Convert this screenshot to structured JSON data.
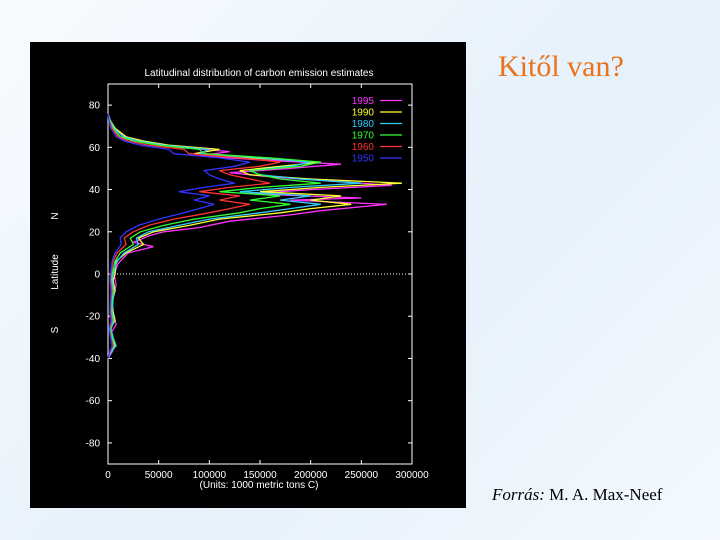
{
  "slide": {
    "title": "Kitől van?",
    "source_label": "Forrás:",
    "source_author": " M. A. Max-Neef",
    "title_color": "#e8731c"
  },
  "chart_data": {
    "type": "line",
    "title": "Latitudinal distribution of carbon emission estimates",
    "xlabel": "(Units: 1000 metric tons C)",
    "ylabel": "Latitude",
    "ylabel_north": "N",
    "ylabel_south": "S",
    "xlim": [
      0,
      300000
    ],
    "ylim": [
      -90,
      90
    ],
    "x_ticks": [
      0,
      50000,
      100000,
      150000,
      200000,
      250000,
      300000
    ],
    "x_tick_labels": [
      "0",
      "50000",
      "100000",
      "150000",
      "200000",
      "250000",
      "300000"
    ],
    "y_ticks": [
      80,
      60,
      40,
      20,
      0,
      -20,
      -40,
      -60,
      -80
    ],
    "y_tick_labels": [
      "80",
      "60",
      "40",
      "20",
      "0",
      "-20",
      "-40",
      "-60",
      "-80"
    ],
    "background": "#000000",
    "legend_position": "top-right",
    "equator_line": true,
    "series": [
      {
        "name": "1995",
        "color": "#ff33ff",
        "points": [
          [
            0,
            -40
          ],
          [
            4000,
            -37
          ],
          [
            6000,
            -35
          ],
          [
            5000,
            -32
          ],
          [
            3000,
            -28
          ],
          [
            8000,
            -24
          ],
          [
            6000,
            -20
          ],
          [
            3000,
            -15
          ],
          [
            6000,
            -10
          ],
          [
            8000,
            -5
          ],
          [
            6000,
            0
          ],
          [
            10000,
            5
          ],
          [
            20000,
            10
          ],
          [
            45000,
            13
          ],
          [
            25000,
            15
          ],
          [
            40000,
            18
          ],
          [
            55000,
            20
          ],
          [
            90000,
            22
          ],
          [
            120000,
            25
          ],
          [
            180000,
            28
          ],
          [
            210000,
            30
          ],
          [
            275000,
            33
          ],
          [
            180000,
            35
          ],
          [
            250000,
            36
          ],
          [
            140000,
            38
          ],
          [
            200000,
            40
          ],
          [
            280000,
            42
          ],
          [
            220000,
            44
          ],
          [
            160000,
            46
          ],
          [
            120000,
            48
          ],
          [
            180000,
            50
          ],
          [
            230000,
            52
          ],
          [
            150000,
            54
          ],
          [
            90000,
            56
          ],
          [
            120000,
            58
          ],
          [
            70000,
            60
          ],
          [
            40000,
            62
          ],
          [
            20000,
            64
          ],
          [
            8000,
            68
          ],
          [
            3000,
            72
          ],
          [
            0,
            75
          ]
        ]
      },
      {
        "name": "1990",
        "color": "#ffff33",
        "points": [
          [
            0,
            -40
          ],
          [
            3000,
            -37
          ],
          [
            7000,
            -34
          ],
          [
            4000,
            -30
          ],
          [
            2000,
            -26
          ],
          [
            7000,
            -22
          ],
          [
            5000,
            -18
          ],
          [
            4000,
            -12
          ],
          [
            7000,
            -8
          ],
          [
            5000,
            -3
          ],
          [
            7000,
            0
          ],
          [
            8000,
            6
          ],
          [
            18000,
            10
          ],
          [
            35000,
            14
          ],
          [
            30000,
            17
          ],
          [
            45000,
            20
          ],
          [
            80000,
            23
          ],
          [
            110000,
            26
          ],
          [
            170000,
            29
          ],
          [
            200000,
            31
          ],
          [
            240000,
            33
          ],
          [
            200000,
            35
          ],
          [
            230000,
            37
          ],
          [
            150000,
            39
          ],
          [
            210000,
            41
          ],
          [
            290000,
            43
          ],
          [
            200000,
            45
          ],
          [
            140000,
            47
          ],
          [
            130000,
            49
          ],
          [
            170000,
            51
          ],
          [
            210000,
            53
          ],
          [
            140000,
            55
          ],
          [
            85000,
            57
          ],
          [
            110000,
            59
          ],
          [
            60000,
            61
          ],
          [
            35000,
            63
          ],
          [
            18000,
            65
          ],
          [
            7000,
            69
          ],
          [
            2000,
            73
          ],
          [
            0,
            76
          ]
        ]
      },
      {
        "name": "1980",
        "color": "#33ccff",
        "points": [
          [
            0,
            -40
          ],
          [
            3000,
            -37
          ],
          [
            8000,
            -34
          ],
          [
            5000,
            -30
          ],
          [
            3000,
            -26
          ],
          [
            6000,
            -22
          ],
          [
            4000,
            -18
          ],
          [
            5000,
            -12
          ],
          [
            6000,
            -8
          ],
          [
            4000,
            -3
          ],
          [
            5000,
            0
          ],
          [
            9000,
            6
          ],
          [
            16000,
            10
          ],
          [
            30000,
            14
          ],
          [
            28000,
            17
          ],
          [
            40000,
            20
          ],
          [
            70000,
            23
          ],
          [
            100000,
            26
          ],
          [
            150000,
            29
          ],
          [
            180000,
            31
          ],
          [
            210000,
            33
          ],
          [
            170000,
            35
          ],
          [
            200000,
            37
          ],
          [
            130000,
            39
          ],
          [
            180000,
            41
          ],
          [
            250000,
            43
          ],
          [
            190000,
            45
          ],
          [
            150000,
            47
          ],
          [
            140000,
            49
          ],
          [
            180000,
            51
          ],
          [
            200000,
            53
          ],
          [
            150000,
            55
          ],
          [
            90000,
            57
          ],
          [
            100000,
            59
          ],
          [
            55000,
            61
          ],
          [
            30000,
            63
          ],
          [
            15000,
            65
          ],
          [
            6000,
            69
          ],
          [
            2000,
            73
          ],
          [
            0,
            76
          ]
        ]
      },
      {
        "name": "1970",
        "color": "#33ff33",
        "points": [
          [
            0,
            -40
          ],
          [
            2000,
            -37
          ],
          [
            6000,
            -34
          ],
          [
            4000,
            -30
          ],
          [
            2000,
            -26
          ],
          [
            5000,
            -22
          ],
          [
            3000,
            -18
          ],
          [
            4000,
            -12
          ],
          [
            5000,
            -8
          ],
          [
            3000,
            -3
          ],
          [
            4000,
            0
          ],
          [
            7000,
            6
          ],
          [
            12000,
            10
          ],
          [
            25000,
            14
          ],
          [
            22000,
            17
          ],
          [
            32000,
            20
          ],
          [
            55000,
            23
          ],
          [
            85000,
            26
          ],
          [
            130000,
            29
          ],
          [
            150000,
            31
          ],
          [
            180000,
            33
          ],
          [
            140000,
            35
          ],
          [
            170000,
            37
          ],
          [
            110000,
            39
          ],
          [
            150000,
            41
          ],
          [
            210000,
            43
          ],
          [
            170000,
            45
          ],
          [
            150000,
            47
          ],
          [
            140000,
            49
          ],
          [
            190000,
            51
          ],
          [
            210000,
            53
          ],
          [
            160000,
            55
          ],
          [
            95000,
            57
          ],
          [
            90000,
            59
          ],
          [
            50000,
            61
          ],
          [
            25000,
            63
          ],
          [
            12000,
            65
          ],
          [
            5000,
            69
          ],
          [
            1500,
            73
          ],
          [
            0,
            76
          ]
        ]
      },
      {
        "name": "1960",
        "color": "#ff3333",
        "points": [
          [
            0,
            -40
          ],
          [
            2000,
            -37
          ],
          [
            5000,
            -34
          ],
          [
            3000,
            -30
          ],
          [
            1500,
            -26
          ],
          [
            4000,
            -22
          ],
          [
            2500,
            -18
          ],
          [
            3000,
            -12
          ],
          [
            4000,
            -8
          ],
          [
            2500,
            -3
          ],
          [
            3000,
            0
          ],
          [
            5000,
            6
          ],
          [
            9000,
            10
          ],
          [
            18000,
            14
          ],
          [
            16000,
            17
          ],
          [
            25000,
            20
          ],
          [
            40000,
            23
          ],
          [
            65000,
            26
          ],
          [
            100000,
            29
          ],
          [
            120000,
            31
          ],
          [
            140000,
            33
          ],
          [
            110000,
            35
          ],
          [
            130000,
            37
          ],
          [
            90000,
            39
          ],
          [
            120000,
            41
          ],
          [
            160000,
            43
          ],
          [
            140000,
            45
          ],
          [
            120000,
            47
          ],
          [
            110000,
            49
          ],
          [
            150000,
            51
          ],
          [
            170000,
            53
          ],
          [
            130000,
            55
          ],
          [
            80000,
            57
          ],
          [
            75000,
            59
          ],
          [
            40000,
            61
          ],
          [
            20000,
            63
          ],
          [
            10000,
            65
          ],
          [
            4000,
            69
          ],
          [
            1000,
            73
          ],
          [
            0,
            76
          ]
        ]
      },
      {
        "name": "1950",
        "color": "#3333ff",
        "points": [
          [
            0,
            -40
          ],
          [
            1500,
            -37
          ],
          [
            4000,
            -34
          ],
          [
            2500,
            -30
          ],
          [
            1000,
            -26
          ],
          [
            3000,
            -22
          ],
          [
            2000,
            -18
          ],
          [
            2500,
            -12
          ],
          [
            3000,
            -8
          ],
          [
            2000,
            -3
          ],
          [
            2500,
            0
          ],
          [
            4000,
            6
          ],
          [
            7000,
            10
          ],
          [
            13000,
            14
          ],
          [
            12000,
            17
          ],
          [
            18000,
            20
          ],
          [
            30000,
            23
          ],
          [
            50000,
            26
          ],
          [
            75000,
            29
          ],
          [
            90000,
            31
          ],
          [
            105000,
            33
          ],
          [
            85000,
            35
          ],
          [
            100000,
            37
          ],
          [
            70000,
            39
          ],
          [
            95000,
            41
          ],
          [
            125000,
            43
          ],
          [
            110000,
            45
          ],
          [
            100000,
            47
          ],
          [
            95000,
            49
          ],
          [
            125000,
            51
          ],
          [
            140000,
            53
          ],
          [
            110000,
            55
          ],
          [
            65000,
            57
          ],
          [
            60000,
            59
          ],
          [
            32000,
            61
          ],
          [
            16000,
            63
          ],
          [
            8000,
            65
          ],
          [
            3000,
            69
          ],
          [
            800,
            73
          ],
          [
            0,
            76
          ]
        ]
      }
    ]
  }
}
